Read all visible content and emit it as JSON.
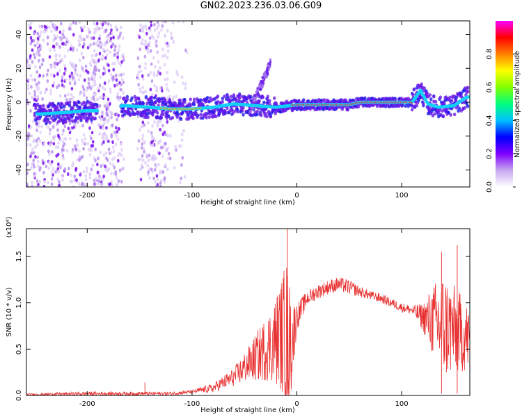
{
  "title": "GN02.2023.236.03.06.G09",
  "chart_data": [
    {
      "type": "heatmap",
      "xlabel": "Height of straight line (km)",
      "ylabel": "Frequency (Hz)",
      "xlim": [
        -258,
        165
      ],
      "ylim": [
        -50,
        48
      ],
      "x_ticks": [
        -200,
        -100,
        0,
        100
      ],
      "x_tick_labels": [
        "-200",
        "-100",
        "0",
        "100"
      ],
      "y_ticks": [
        -40,
        -20,
        0,
        20,
        40
      ],
      "y_tick_labels": [
        "-40",
        "-20",
        "0",
        "20",
        "40"
      ],
      "ridge": {
        "x": [
          -245,
          -220,
          -200,
          -190,
          -165,
          -140,
          -120,
          -100,
          -80,
          -60,
          -40,
          -20,
          0,
          25,
          50,
          60,
          80,
          100,
          110,
          118,
          125,
          135,
          150,
          162
        ],
        "y": [
          -7,
          -6,
          -5,
          -5,
          -2,
          -3,
          -4,
          -4,
          -3,
          -1,
          -2,
          -3,
          -1.5,
          -1.5,
          -1.5,
          0,
          0,
          0,
          0,
          7,
          -1,
          -3,
          -2,
          3
        ]
      },
      "colorbar": {
        "label": "Normalized spectral amplitude",
        "range": [
          0,
          1
        ],
        "ticks": [
          0.0,
          0.2,
          0.4,
          0.6,
          0.8
        ],
        "tick_labels": [
          "0.0",
          "0.2",
          "0.4",
          "0.6",
          "0.8"
        ],
        "colors": [
          "#ffffff",
          "#c8a8f0",
          "#8000ff",
          "#0000ff",
          "#00c0ff",
          "#00ff80",
          "#80ff00",
          "#ffff00",
          "#ff8000",
          "#ff0000",
          "#ff00ff"
        ]
      }
    },
    {
      "type": "line",
      "xlabel": "Height of straight line (km)",
      "ylabel": "SNR (10 * v/v)",
      "scale_label": "(x10⁴)",
      "xlim": [
        -258,
        165
      ],
      "ylim": [
        0,
        1.8
      ],
      "x_ticks": [
        -200,
        -100,
        0,
        100
      ],
      "x_tick_labels": [
        "-200",
        "-100",
        "0",
        "100"
      ],
      "y_ticks": [
        0.0,
        0.5,
        1.0,
        1.5
      ],
      "y_tick_labels": [
        "0.0",
        "0.5",
        "1.0",
        "1.5"
      ],
      "color": "#e83030",
      "envelope": {
        "x": [
          -258,
          -200,
          -160,
          -120,
          -100,
          -80,
          -60,
          -45,
          -35,
          -25,
          -15,
          -10,
          -5,
          0,
          10,
          20,
          30,
          40,
          50,
          60,
          70,
          80,
          90,
          100,
          110,
          120,
          130,
          140,
          150,
          160,
          165
        ],
        "mean": [
          0.01,
          0.02,
          0.02,
          0.02,
          0.04,
          0.08,
          0.2,
          0.35,
          0.45,
          0.55,
          0.65,
          0.6,
          0.55,
          0.85,
          1.05,
          1.12,
          1.17,
          1.2,
          1.17,
          1.12,
          1.08,
          1.05,
          1.0,
          0.95,
          0.92,
          0.85,
          0.8,
          0.75,
          0.7,
          0.65,
          0.6
        ],
        "amplitude": [
          0.01,
          0.02,
          0.02,
          0.02,
          0.02,
          0.05,
          0.1,
          0.2,
          0.3,
          0.4,
          0.6,
          0.9,
          0.5,
          0.15,
          0.08,
          0.08,
          0.08,
          0.08,
          0.08,
          0.06,
          0.05,
          0.05,
          0.05,
          0.05,
          0.05,
          0.15,
          0.4,
          0.6,
          0.5,
          0.4,
          0.35
        ]
      },
      "peaks": [
        {
          "x": -145,
          "y": 0.14
        },
        {
          "x": -9,
          "y": 1.8
        },
        {
          "x": 138,
          "y": 1.55
        },
        {
          "x": 153,
          "y": 1.62
        }
      ]
    }
  ]
}
